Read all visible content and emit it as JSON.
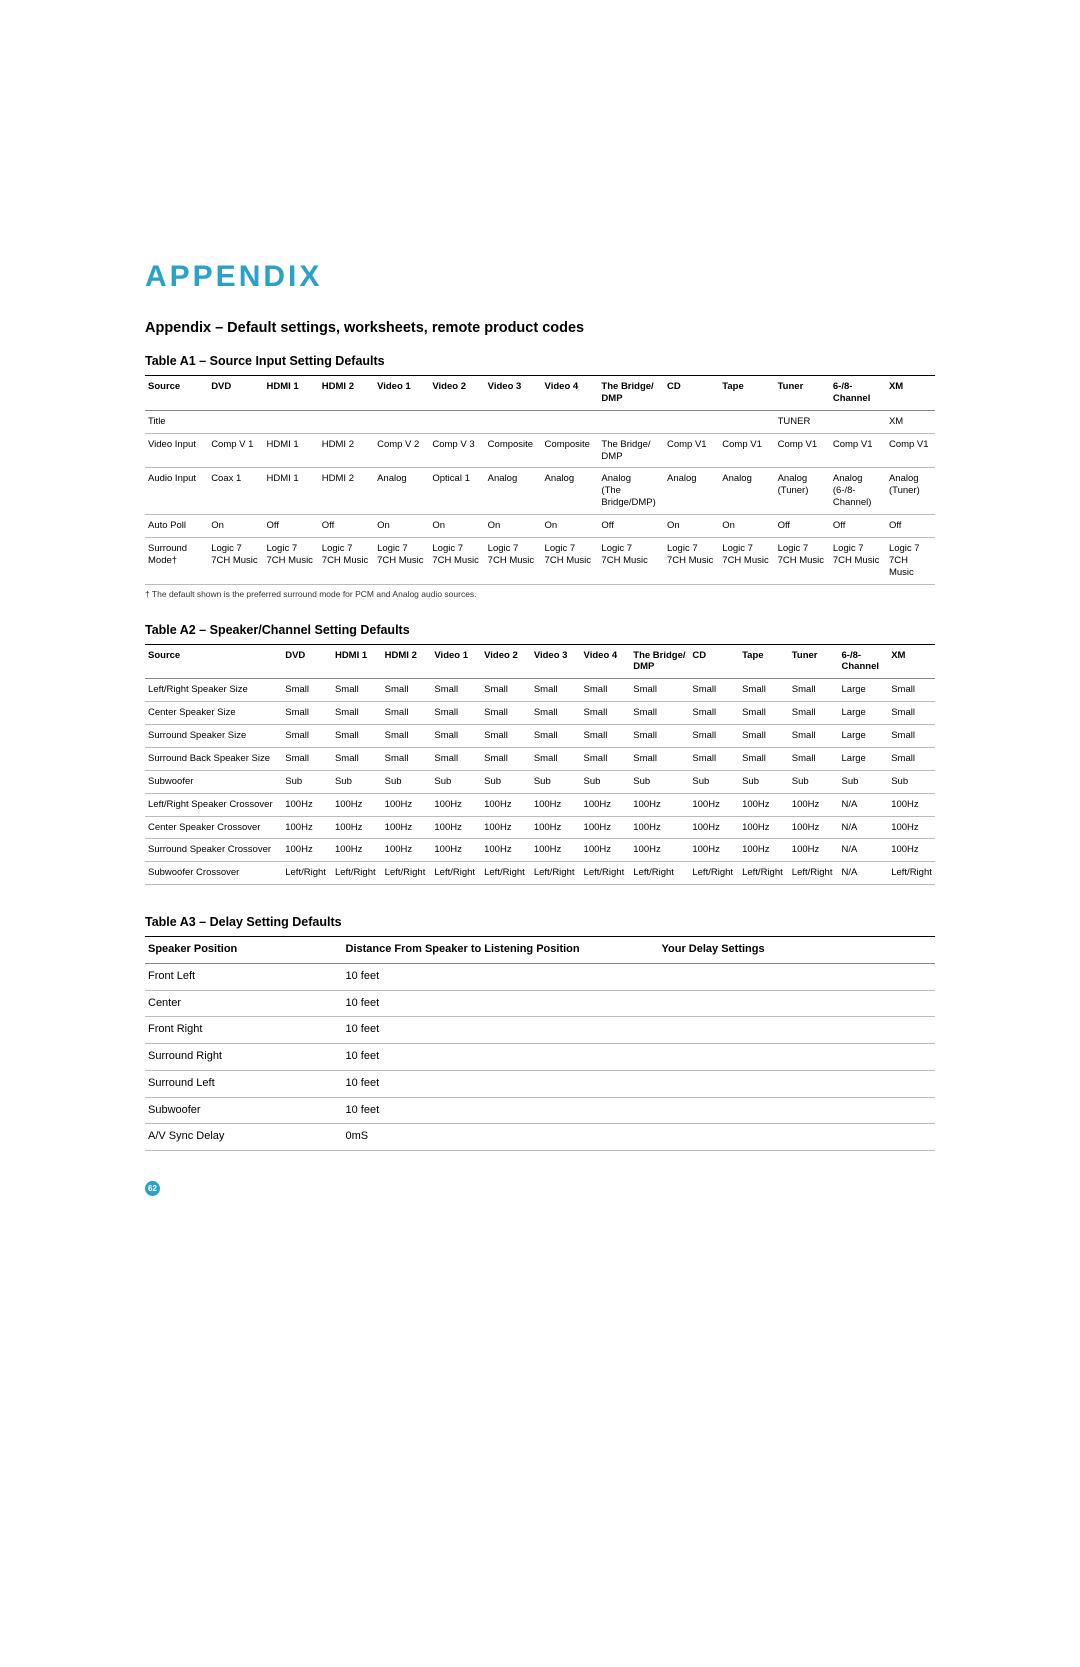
{
  "colors": {
    "section_title": "#2aa1c9",
    "text": "#000000",
    "rule": "#000000",
    "row_rule": "#bbbbbb",
    "page_bg": "#ffffff",
    "page_num_bg": "#2aa1c9",
    "page_num_text": "#ffffff"
  },
  "section_title": "APPENDIX",
  "subtitle": "Appendix – Default settings, worksheets, remote product codes",
  "tableA1": {
    "caption": "Table A1 – Source Input Setting Defaults",
    "columns": [
      "Source",
      "DVD",
      "HDMI 1",
      "HDMI 2",
      "Video 1",
      "Video 2",
      "Video 3",
      "Video 4",
      "The Bridge/\nDMP",
      "CD",
      "Tape",
      "Tuner",
      "6-/8-\nChannel",
      "XM"
    ],
    "rows": [
      [
        "Title",
        "",
        "",
        "",
        "",
        "",
        "",
        "",
        "",
        "",
        "",
        "TUNER",
        "",
        "XM"
      ],
      [
        "Video Input",
        "Comp V 1",
        "HDMI 1",
        "HDMI 2",
        "Comp V 2",
        "Comp V 3",
        "Composite",
        "Composite",
        "The Bridge/\nDMP",
        "Comp V1",
        "Comp V1",
        "Comp V1",
        "Comp V1",
        "Comp V1"
      ],
      [
        "Audio Input",
        "Coax 1",
        "HDMI 1",
        "HDMI 2",
        "Analog",
        "Optical 1",
        "Analog",
        "Analog",
        "Analog\n(The Bridge/DMP)",
        "Analog",
        "Analog",
        "Analog\n(Tuner)",
        "Analog\n(6-/8-Channel)",
        "Analog\n(Tuner)"
      ],
      [
        "Auto Poll",
        "On",
        "Off",
        "Off",
        "On",
        "On",
        "On",
        "On",
        "Off",
        "On",
        "On",
        "Off",
        "Off",
        "Off"
      ],
      [
        "Surround\nMode†",
        "Logic 7\n7CH Music",
        "Logic 7\n7CH Music",
        "Logic 7\n7CH Music",
        "Logic 7\n7CH Music",
        "Logic 7\n7CH Music",
        "Logic 7\n7CH Music",
        "Logic 7\n7CH Music",
        "Logic 7\n7CH Music",
        "Logic 7\n7CH Music",
        "Logic 7\n7CH Music",
        "Logic 7\n7CH Music",
        "Logic 7\n7CH Music",
        "Logic 7\n7CH Music"
      ]
    ],
    "footnote": "† The default shown is the preferred surround mode for PCM and Analog audio sources."
  },
  "tableA2": {
    "caption": "Table A2 – Speaker/Channel Setting Defaults",
    "columns": [
      "Source",
      "DVD",
      "HDMI 1",
      "HDMI 2",
      "Video 1",
      "Video 2",
      "Video 3",
      "Video 4",
      "The Bridge/\nDMP",
      "CD",
      "Tape",
      "Tuner",
      "6-/8-\nChannel",
      "XM"
    ],
    "col_widths_pct": [
      17.5,
      6.3,
      6.3,
      6.3,
      6.3,
      6.3,
      6.3,
      6.3,
      7.5,
      6.3,
      6.3,
      6.3,
      6.3,
      6.3
    ],
    "rows": [
      [
        "Left/Right Speaker Size",
        "Small",
        "Small",
        "Small",
        "Small",
        "Small",
        "Small",
        "Small",
        "Small",
        "Small",
        "Small",
        "Small",
        "Large",
        "Small"
      ],
      [
        "Center Speaker Size",
        "Small",
        "Small",
        "Small",
        "Small",
        "Small",
        "Small",
        "Small",
        "Small",
        "Small",
        "Small",
        "Small",
        "Large",
        "Small"
      ],
      [
        "Surround Speaker Size",
        "Small",
        "Small",
        "Small",
        "Small",
        "Small",
        "Small",
        "Small",
        "Small",
        "Small",
        "Small",
        "Small",
        "Large",
        "Small"
      ],
      [
        "Surround Back Speaker Size",
        "Small",
        "Small",
        "Small",
        "Small",
        "Small",
        "Small",
        "Small",
        "Small",
        "Small",
        "Small",
        "Small",
        "Large",
        "Small"
      ],
      [
        "Subwoofer",
        "Sub",
        "Sub",
        "Sub",
        "Sub",
        "Sub",
        "Sub",
        "Sub",
        "Sub",
        "Sub",
        "Sub",
        "Sub",
        "Sub",
        "Sub"
      ],
      [
        "Left/Right Speaker Crossover",
        "100Hz",
        "100Hz",
        "100Hz",
        "100Hz",
        "100Hz",
        "100Hz",
        "100Hz",
        "100Hz",
        "100Hz",
        "100Hz",
        "100Hz",
        "N/A",
        "100Hz"
      ],
      [
        "Center Speaker Crossover",
        "100Hz",
        "100Hz",
        "100Hz",
        "100Hz",
        "100Hz",
        "100Hz",
        "100Hz",
        "100Hz",
        "100Hz",
        "100Hz",
        "100Hz",
        "N/A",
        "100Hz"
      ],
      [
        "Surround Speaker Crossover",
        "100Hz",
        "100Hz",
        "100Hz",
        "100Hz",
        "100Hz",
        "100Hz",
        "100Hz",
        "100Hz",
        "100Hz",
        "100Hz",
        "100Hz",
        "N/A",
        "100Hz"
      ],
      [
        "Subwoofer Crossover",
        "Left/Right",
        "Left/Right",
        "Left/Right",
        "Left/Right",
        "Left/Right",
        "Left/Right",
        "Left/Right",
        "Left/Right",
        "Left/Right",
        "Left/Right",
        "Left/Right",
        "N/A",
        "Left/Right"
      ]
    ]
  },
  "tableA3": {
    "caption": "Table A3 – Delay Setting Defaults",
    "columns": [
      "Speaker Position",
      "Distance From Speaker to Listening Position",
      "Your Delay Settings"
    ],
    "rows": [
      [
        "Front Left",
        "10 feet",
        ""
      ],
      [
        "Center",
        "10 feet",
        ""
      ],
      [
        "Front Right",
        "10 feet",
        ""
      ],
      [
        "Surround Right",
        "10 feet",
        ""
      ],
      [
        "Surround Left",
        "10 feet",
        ""
      ],
      [
        "Subwoofer",
        "10 feet",
        ""
      ],
      [
        "A/V Sync Delay",
        "0mS",
        ""
      ]
    ]
  },
  "page_number": "62"
}
